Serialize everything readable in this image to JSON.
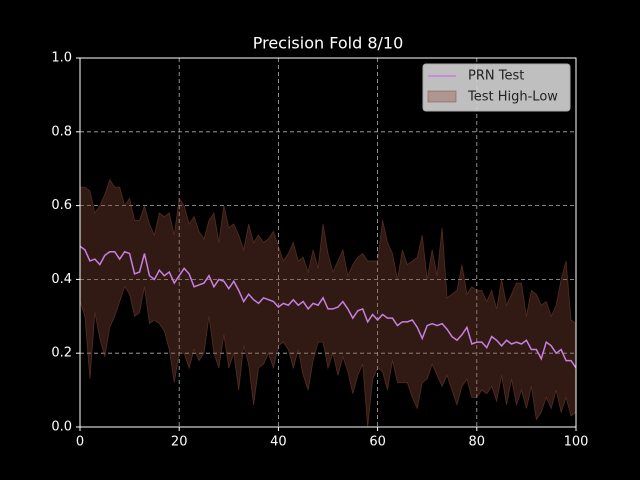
{
  "chart_data": {
    "type": "line",
    "title": "Precision Fold 8/10",
    "x": [
      0,
      1,
      2,
      3,
      4,
      5,
      6,
      7,
      8,
      9,
      10,
      11,
      12,
      13,
      14,
      15,
      16,
      17,
      18,
      19,
      20,
      21,
      22,
      23,
      24,
      25,
      26,
      27,
      28,
      29,
      30,
      31,
      32,
      33,
      34,
      35,
      36,
      37,
      38,
      39,
      40,
      41,
      42,
      43,
      44,
      45,
      46,
      47,
      48,
      49,
      50,
      51,
      52,
      53,
      54,
      55,
      56,
      57,
      58,
      59,
      60,
      61,
      62,
      63,
      64,
      65,
      66,
      67,
      68,
      69,
      70,
      71,
      72,
      73,
      74,
      75,
      76,
      77,
      78,
      79,
      80,
      81,
      82,
      83,
      84,
      85,
      86,
      87,
      88,
      89,
      90,
      91,
      92,
      93,
      94,
      95,
      96,
      97,
      98,
      99,
      100
    ],
    "series": [
      {
        "name": "PRN Test",
        "color": "#c77fe0",
        "values": [
          0.49,
          0.48,
          0.45,
          0.455,
          0.44,
          0.465,
          0.475,
          0.475,
          0.455,
          0.475,
          0.47,
          0.415,
          0.42,
          0.47,
          0.41,
          0.4,
          0.425,
          0.41,
          0.42,
          0.39,
          0.41,
          0.43,
          0.415,
          0.38,
          0.385,
          0.39,
          0.41,
          0.38,
          0.4,
          0.395,
          0.375,
          0.395,
          0.37,
          0.34,
          0.36,
          0.345,
          0.335,
          0.35,
          0.345,
          0.34,
          0.325,
          0.335,
          0.33,
          0.345,
          0.33,
          0.34,
          0.32,
          0.335,
          0.33,
          0.35,
          0.32,
          0.32,
          0.325,
          0.34,
          0.32,
          0.295,
          0.315,
          0.32,
          0.285,
          0.305,
          0.29,
          0.305,
          0.295,
          0.295,
          0.275,
          0.285,
          0.285,
          0.29,
          0.27,
          0.24,
          0.275,
          0.28,
          0.275,
          0.28,
          0.265,
          0.245,
          0.235,
          0.25,
          0.27,
          0.225,
          0.23,
          0.23,
          0.215,
          0.245,
          0.235,
          0.22,
          0.235,
          0.225,
          0.23,
          0.225,
          0.235,
          0.21,
          0.21,
          0.185,
          0.23,
          0.22,
          0.2,
          0.21,
          0.18,
          0.18,
          0.16
        ]
      }
    ],
    "band": {
      "name": "Test High-Low",
      "color": "#8b4a3a",
      "high": [
        0.65,
        0.65,
        0.64,
        0.58,
        0.6,
        0.63,
        0.67,
        0.65,
        0.65,
        0.6,
        0.62,
        0.56,
        0.56,
        0.6,
        0.55,
        0.52,
        0.58,
        0.57,
        0.58,
        0.52,
        0.62,
        0.6,
        0.55,
        0.57,
        0.53,
        0.51,
        0.56,
        0.58,
        0.5,
        0.6,
        0.54,
        0.55,
        0.52,
        0.48,
        0.55,
        0.5,
        0.52,
        0.5,
        0.51,
        0.53,
        0.49,
        0.45,
        0.47,
        0.5,
        0.45,
        0.46,
        0.42,
        0.48,
        0.43,
        0.55,
        0.47,
        0.42,
        0.45,
        0.48,
        0.41,
        0.44,
        0.46,
        0.47,
        0.45,
        0.45,
        0.45,
        0.56,
        0.5,
        0.47,
        0.4,
        0.48,
        0.44,
        0.45,
        0.46,
        0.52,
        0.4,
        0.48,
        0.41,
        0.54,
        0.35,
        0.36,
        0.37,
        0.44,
        0.36,
        0.38,
        0.37,
        0.37,
        0.34,
        0.37,
        0.32,
        0.4,
        0.33,
        0.36,
        0.39,
        0.39,
        0.3,
        0.37,
        0.36,
        0.33,
        0.34,
        0.3,
        0.33,
        0.4,
        0.45,
        0.29,
        0.28
      ],
      "low": [
        0.34,
        0.3,
        0.13,
        0.31,
        0.24,
        0.19,
        0.27,
        0.3,
        0.34,
        0.38,
        0.36,
        0.3,
        0.31,
        0.38,
        0.28,
        0.29,
        0.28,
        0.26,
        0.21,
        0.12,
        0.2,
        0.2,
        0.16,
        0.21,
        0.18,
        0.2,
        0.3,
        0.2,
        0.16,
        0.25,
        0.16,
        0.2,
        0.1,
        0.22,
        0.17,
        0.06,
        0.16,
        0.17,
        0.2,
        0.16,
        0.22,
        0.23,
        0.21,
        0.16,
        0.21,
        0.14,
        0.1,
        0.18,
        0.23,
        0.23,
        0.16,
        0.2,
        0.14,
        0.19,
        0.15,
        0.09,
        0.14,
        0.17,
        0.0,
        0.13,
        0.16,
        0.15,
        0.1,
        0.18,
        0.12,
        0.12,
        0.12,
        0.08,
        0.05,
        0.12,
        0.13,
        0.17,
        0.14,
        0.11,
        0.14,
        0.1,
        0.06,
        0.11,
        0.13,
        0.08,
        0.08,
        0.1,
        0.09,
        0.11,
        0.07,
        0.14,
        0.06,
        0.13,
        0.06,
        0.1,
        0.05,
        0.11,
        0.02,
        0.04,
        0.08,
        0.05,
        0.1,
        0.04,
        0.08,
        0.03,
        0.04
      ]
    },
    "xlim": [
      0,
      100
    ],
    "xticks": [
      0,
      20,
      40,
      60,
      80,
      100
    ],
    "ylim": [
      0,
      1
    ],
    "yticks": [
      {
        "value": 0,
        "label": "0.0"
      },
      0.2,
      0.4,
      0.6,
      0.8,
      {
        "value": 1,
        "label": "1.0"
      }
    ],
    "grid": true,
    "legend": "upper right"
  }
}
